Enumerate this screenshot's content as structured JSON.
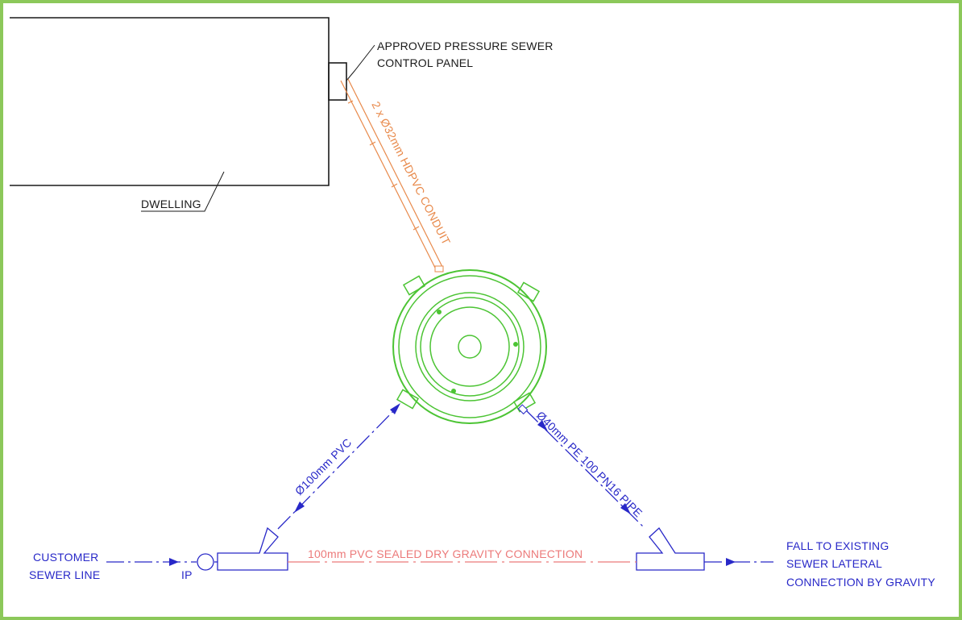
{
  "labels": {
    "control_panel_1": "APPROVED PRESSURE SEWER",
    "control_panel_2": "CONTROL PANEL",
    "dwelling": "DWELLING",
    "conduit": "2 x Ø32mm HDPVC CONDUIT",
    "pvc_inlet": "Ø100mm PVC",
    "pe_outlet": "Ø40mm PE 100 PN16 PIPE",
    "gravity_connection": "100mm PVC SEALED DRY GRAVITY CONNECTION",
    "customer_1": "CUSTOMER",
    "customer_2": "SEWER LINE",
    "ip": "IP",
    "fall_1": "FALL TO EXISTING",
    "fall_2": "SEWER LATERAL",
    "fall_3": "CONNECTION BY GRAVITY"
  },
  "colors": {
    "frame": "#8cc85a",
    "linework": "#1a1a1a",
    "conduit": "#e8894a",
    "pipe": "#2828c8",
    "tank": "#4cc434",
    "gravity": "#ec7a7a"
  }
}
